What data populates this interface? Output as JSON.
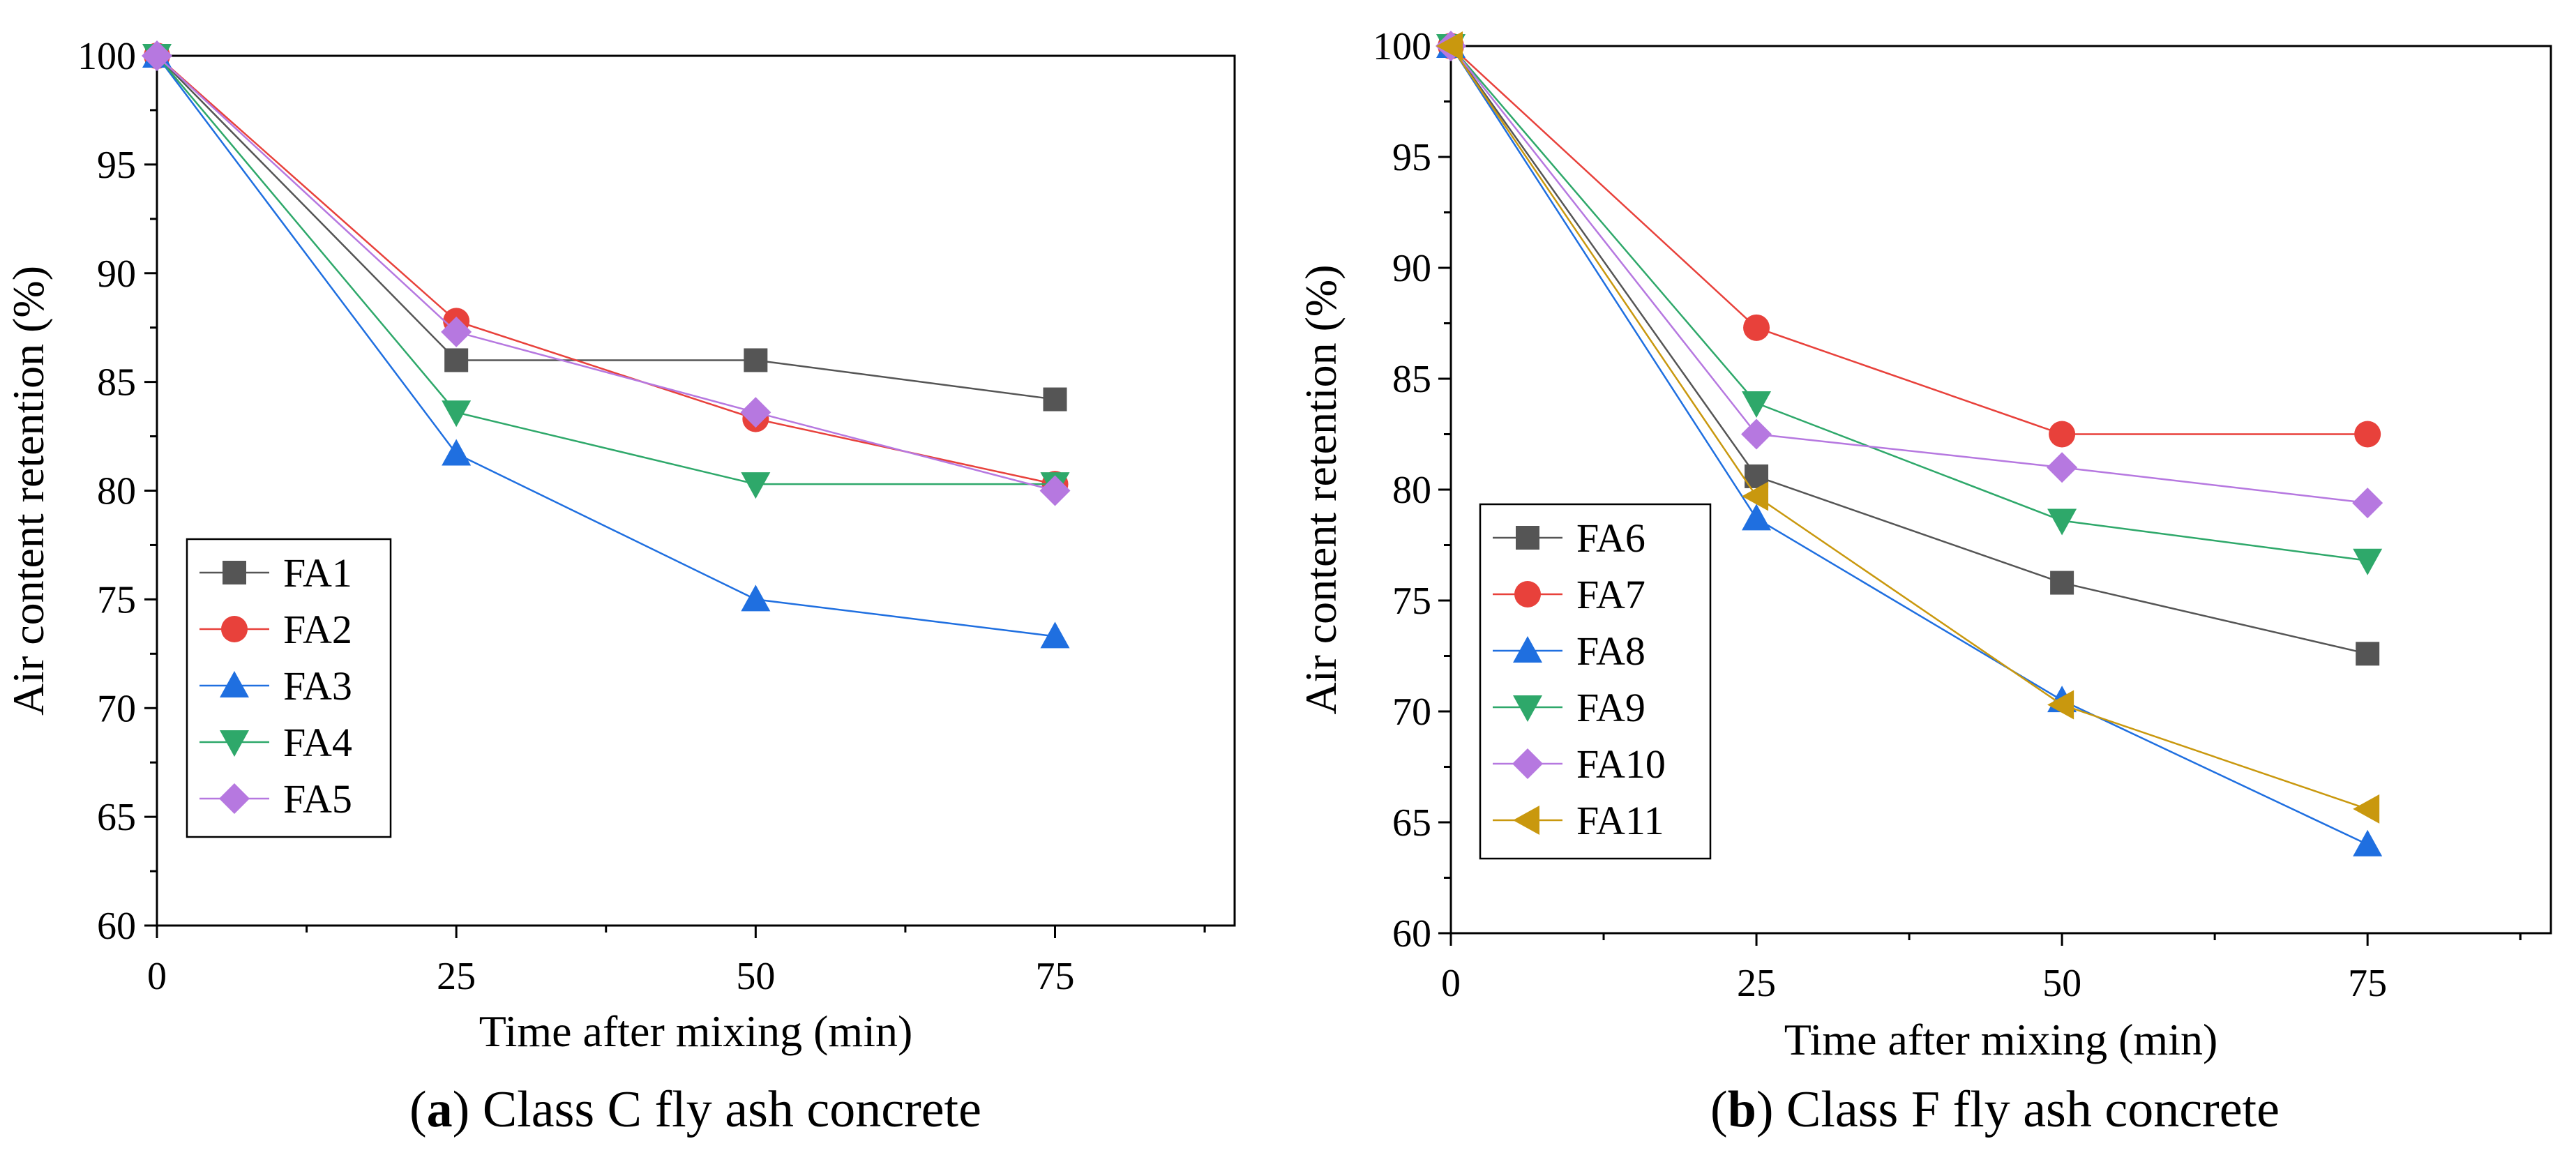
{
  "chart_data": [
    {
      "type": "line",
      "caption_letter": "a",
      "caption_text": ") Class C fly ash concrete",
      "caption_open": "(",
      "xlabel": "Time after mixing (min)",
      "ylabel": "Air content retention (%)",
      "xlim": [
        0,
        90
      ],
      "ylim": [
        60,
        100
      ],
      "xticks": [
        0,
        25,
        50,
        75
      ],
      "xtick_labels": [
        "0",
        "25",
        "50",
        "75"
      ],
      "yticks": [
        60,
        65,
        70,
        75,
        80,
        85,
        90,
        95,
        100
      ],
      "ytick_labels": [
        "60",
        "65",
        "70",
        "75",
        "80",
        "85",
        "90",
        "95",
        "100"
      ],
      "legend_position": "lower-left",
      "x": [
        0,
        25,
        50,
        75
      ],
      "series": [
        {
          "name": "FA1",
          "values": [
            100,
            86.0,
            86.0,
            84.2
          ],
          "color": "#555555",
          "marker": "square"
        },
        {
          "name": "FA2",
          "values": [
            100,
            87.8,
            83.3,
            80.3
          ],
          "color": "#e8413b",
          "marker": "circle"
        },
        {
          "name": "FA3",
          "values": [
            100,
            81.7,
            75.0,
            73.3
          ],
          "color": "#1f6fe0",
          "marker": "triangle-up"
        },
        {
          "name": "FA4",
          "values": [
            100,
            83.6,
            80.3,
            80.3
          ],
          "color": "#2ea86a",
          "marker": "triangle-down"
        },
        {
          "name": "FA5",
          "values": [
            100,
            87.3,
            83.6,
            80.0
          ],
          "color": "#b678e0",
          "marker": "diamond"
        }
      ]
    },
    {
      "type": "line",
      "caption_letter": "b",
      "caption_text": ") Class F fly ash concrete",
      "caption_open": "(",
      "xlabel": "Time after mixing (min)",
      "ylabel": "Air content retention (%)",
      "xlim": [
        0,
        90
      ],
      "ylim": [
        60,
        100
      ],
      "xticks": [
        0,
        25,
        50,
        75
      ],
      "xtick_labels": [
        "0",
        "25",
        "50",
        "75"
      ],
      "yticks": [
        60,
        65,
        70,
        75,
        80,
        85,
        90,
        95,
        100
      ],
      "ytick_labels": [
        "60",
        "65",
        "70",
        "75",
        "80",
        "85",
        "90",
        "95",
        "100"
      ],
      "legend_position": "lower-left",
      "x": [
        0,
        25,
        50,
        75
      ],
      "series": [
        {
          "name": "FA6",
          "values": [
            100,
            80.6,
            75.8,
            72.6
          ],
          "color": "#555555",
          "marker": "square"
        },
        {
          "name": "FA7",
          "values": [
            100,
            87.3,
            82.5,
            82.5
          ],
          "color": "#e8413b",
          "marker": "circle"
        },
        {
          "name": "FA8",
          "values": [
            100,
            78.7,
            70.5,
            64.0
          ],
          "color": "#1f6fe0",
          "marker": "triangle-up"
        },
        {
          "name": "FA9",
          "values": [
            100,
            83.9,
            78.6,
            76.8
          ],
          "color": "#2ea86a",
          "marker": "triangle-down"
        },
        {
          "name": "FA10",
          "values": [
            100,
            82.5,
            81.0,
            79.4
          ],
          "color": "#b678e0",
          "marker": "diamond"
        },
        {
          "name": "FA11",
          "values": [
            100,
            79.7,
            70.3,
            65.6
          ],
          "color": "#c9980e",
          "marker": "triangle-left"
        }
      ]
    }
  ]
}
